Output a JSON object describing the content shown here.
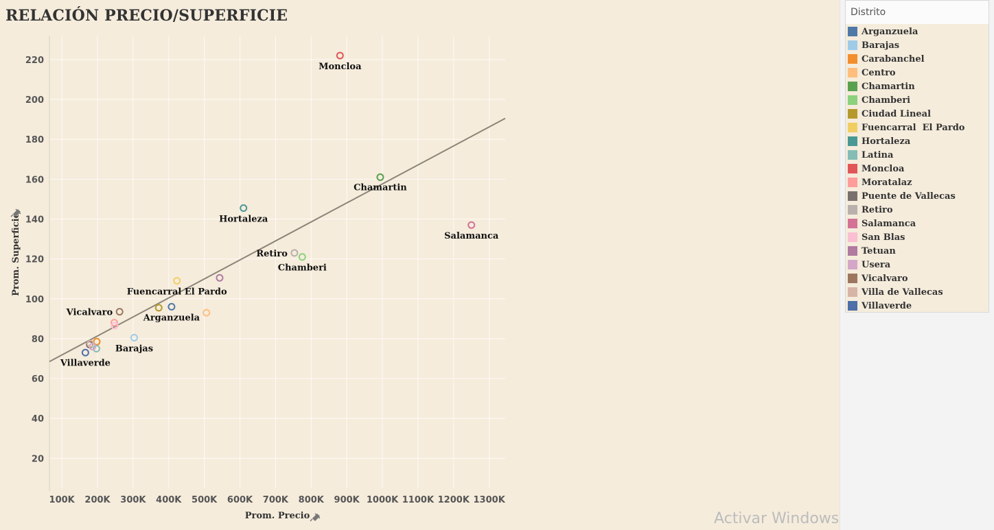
{
  "title": "RELACIÓN PRECIO/SUPERFICIE",
  "watermark": "Activar Windows",
  "legend": {
    "title": "Distrito"
  },
  "chart_data": {
    "type": "scatter",
    "title": "RELACIÓN PRECIO/SUPERFICIE",
    "xlabel": "Prom. Precio",
    "ylabel": "Prom. Superficie",
    "xlim": [
      65000,
      1345000
    ],
    "ylim": [
      5,
      232
    ],
    "x_ticks": [
      {
        "value": 100000,
        "label": "100K"
      },
      {
        "value": 200000,
        "label": "200K"
      },
      {
        "value": 300000,
        "label": "300K"
      },
      {
        "value": 400000,
        "label": "400K"
      },
      {
        "value": 500000,
        "label": "500K"
      },
      {
        "value": 600000,
        "label": "600K"
      },
      {
        "value": 700000,
        "label": "700K"
      },
      {
        "value": 800000,
        "label": "800K"
      },
      {
        "value": 900000,
        "label": "900K"
      },
      {
        "value": 1000000,
        "label": "1000K"
      },
      {
        "value": 1100000,
        "label": "1100K"
      },
      {
        "value": 1200000,
        "label": "1200K"
      },
      {
        "value": 1300000,
        "label": "1300K"
      }
    ],
    "y_ticks": [
      20,
      40,
      60,
      80,
      100,
      120,
      140,
      160,
      180,
      200,
      220
    ],
    "grid": true,
    "legend_position": "right",
    "trend_line": {
      "start": [
        65000,
        68.5
      ],
      "end": [
        1345000,
        190.5
      ],
      "color": "#8c8577"
    },
    "points": [
      {
        "name": "Arganzuela",
        "x": 408000,
        "y": 96,
        "color": "#4e79a7",
        "label": true
      },
      {
        "name": "Barajas",
        "x": 303000,
        "y": 80.5,
        "color": "#a0cbe8",
        "label": true
      },
      {
        "name": "Carabanchel",
        "x": 198000,
        "y": 78.5,
        "color": "#f28e2b",
        "label": false
      },
      {
        "name": "Centro",
        "x": 506000,
        "y": 93,
        "color": "#ffbe7d",
        "label": false
      },
      {
        "name": "Chamartin",
        "x": 994000,
        "y": 161,
        "color": "#59a14f",
        "label": true
      },
      {
        "name": "Chamberi",
        "x": 775000,
        "y": 121,
        "color": "#8cd17d",
        "label": true
      },
      {
        "name": "Ciudad Lineal",
        "x": 372000,
        "y": 95.5,
        "color": "#b6992d",
        "label": false
      },
      {
        "name": "Fuencarral  El Pardo",
        "x": 423000,
        "y": 109,
        "color": "#f1ce63",
        "label": true
      },
      {
        "name": "Hortaleza",
        "x": 610000,
        "y": 145.5,
        "color": "#499894",
        "label": true
      },
      {
        "name": "Latina",
        "x": 197000,
        "y": 75,
        "color": "#86bcb6",
        "label": false
      },
      {
        "name": "Moncloa",
        "x": 881000,
        "y": 222,
        "color": "#e15759",
        "label": true
      },
      {
        "name": "Moratalaz",
        "x": 247000,
        "y": 88,
        "color": "#ff9d9a",
        "label": false
      },
      {
        "name": "Puente de Vallecas",
        "x": 178000,
        "y": 77,
        "color": "#79706e",
        "label": false
      },
      {
        "name": "Retiro",
        "x": 753000,
        "y": 123,
        "color": "#bab0ac",
        "label": true
      },
      {
        "name": "Salamanca",
        "x": 1250000,
        "y": 137,
        "color": "#d37295",
        "label": true
      },
      {
        "name": "San Blas",
        "x": 248000,
        "y": 86.5,
        "color": "#fabfd2",
        "label": false
      },
      {
        "name": "Tetuan",
        "x": 543000,
        "y": 110.5,
        "color": "#b07aa1",
        "label": false
      },
      {
        "name": "Usera",
        "x": 186000,
        "y": 76,
        "color": "#d4a6c8",
        "label": false
      },
      {
        "name": "Vicalvaro",
        "x": 262000,
        "y": 93.5,
        "color": "#9d7660",
        "label": true
      },
      {
        "name": "Villa de Vallecas",
        "x": 180000,
        "y": 77.5,
        "color": "#d7b5a6",
        "label": false
      },
      {
        "name": "Villaverde",
        "x": 166000,
        "y": 73,
        "color": "#4e6fa7",
        "label": true
      }
    ]
  }
}
